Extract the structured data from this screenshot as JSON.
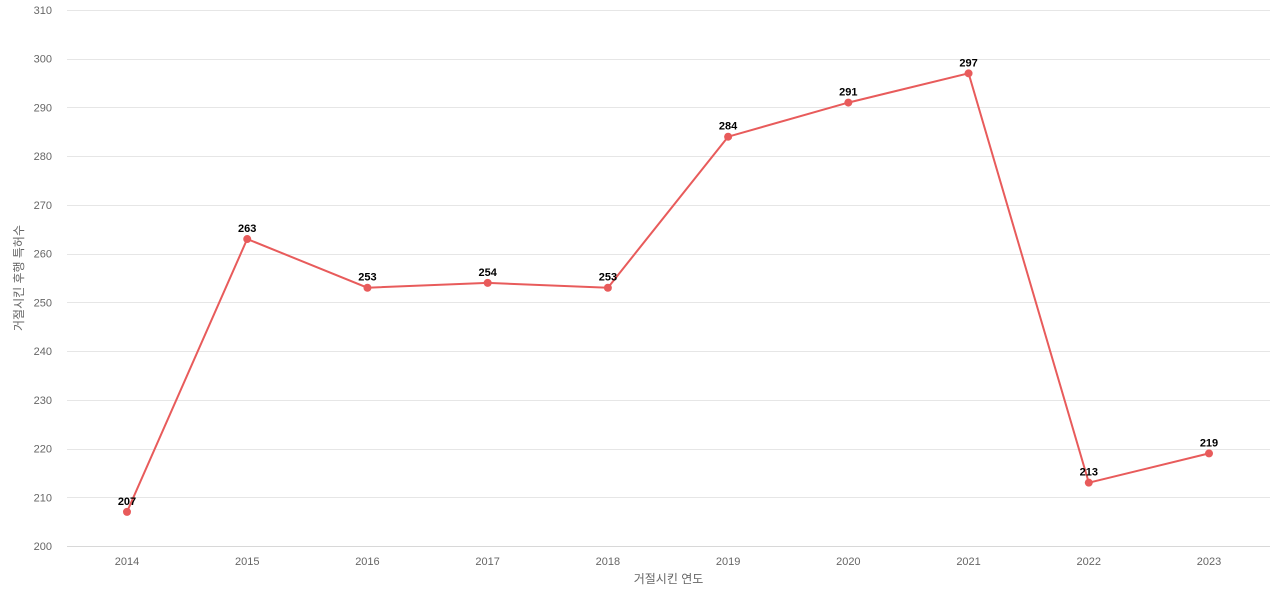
{
  "chart_data": {
    "type": "line",
    "title": "",
    "xlabel": "거절시킨 연도",
    "ylabel": "거절시킨 후행 특허수",
    "categories": [
      "2014",
      "2015",
      "2016",
      "2017",
      "2018",
      "2019",
      "2020",
      "2021",
      "2022",
      "2023"
    ],
    "series": [
      {
        "values": [
          207,
          263,
          253,
          254,
          253,
          284,
          291,
          297,
          213,
          219
        ],
        "color": "#e85b5b"
      }
    ],
    "ylim": [
      200,
      310
    ],
    "yticks": [
      200,
      210,
      220,
      230,
      240,
      250,
      260,
      270,
      280,
      290,
      300,
      310
    ],
    "grid": true,
    "legend": "none",
    "data_labels": true
  }
}
